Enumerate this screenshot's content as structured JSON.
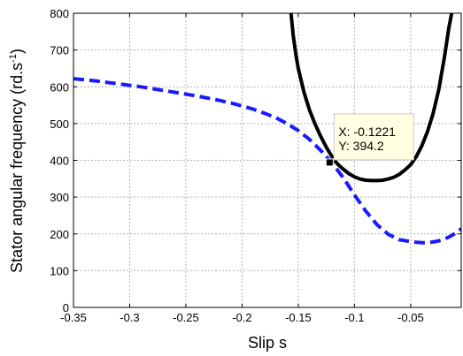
{
  "chart_data": {
    "type": "line",
    "title": "",
    "xlabel": "Slip s",
    "ylabel_main": "Stator angular frequency (rd.s",
    "ylabel_sup": "-1",
    "ylabel_close": ")",
    "xlim": [
      -0.35,
      -0.005
    ],
    "ylim": [
      0,
      800
    ],
    "x_ticks": [
      -0.35,
      -0.3,
      -0.25,
      -0.2,
      -0.15,
      -0.1,
      -0.05
    ],
    "x_tick_labels": [
      "-0.35",
      "-0.3",
      "-0.25",
      "-0.2",
      "-0.15",
      "-0.1",
      "-0.05"
    ],
    "y_ticks": [
      0,
      100,
      200,
      300,
      400,
      500,
      600,
      700,
      800
    ],
    "y_tick_labels": [
      "0",
      "100",
      "200",
      "300",
      "400",
      "500",
      "600",
      "700",
      "800"
    ],
    "grid": true,
    "legend": "none",
    "series": [
      {
        "style": "dashed",
        "color": "#1a1aff",
        "x": [
          -0.35,
          -0.34,
          -0.33,
          -0.32,
          -0.31,
          -0.3,
          -0.29,
          -0.28,
          -0.27,
          -0.26,
          -0.25,
          -0.24,
          -0.23,
          -0.22,
          -0.21,
          -0.2,
          -0.19,
          -0.18,
          -0.17,
          -0.16,
          -0.15,
          -0.14,
          -0.13,
          -0.12,
          -0.11,
          -0.1,
          -0.09,
          -0.08,
          -0.07,
          -0.06,
          -0.05,
          -0.045,
          -0.04,
          -0.035,
          -0.03,
          -0.025,
          -0.02,
          -0.015,
          -0.01,
          -0.005
        ],
        "y": [
          622,
          619,
          616,
          612,
          608,
          604,
          600,
          595,
          590,
          585,
          580,
          575,
          569,
          563,
          556,
          548,
          539,
          528,
          516,
          500,
          481,
          457,
          427,
          393,
          353,
          306,
          262,
          225,
          199,
          184,
          179,
          177,
          176,
          176,
          178,
          181,
          186,
          193,
          202,
          214
        ]
      },
      {
        "style": "solid",
        "color": "#000000",
        "x": [
          -0.1565,
          -0.1545,
          -0.152,
          -0.15,
          -0.145,
          -0.14,
          -0.135,
          -0.13,
          -0.125,
          -0.12,
          -0.115,
          -0.11,
          -0.105,
          -0.1,
          -0.095,
          -0.09,
          -0.085,
          -0.08,
          -0.075,
          -0.07,
          -0.065,
          -0.06,
          -0.055,
          -0.05,
          -0.045,
          -0.04,
          -0.035,
          -0.03,
          -0.025,
          -0.02,
          -0.016,
          -0.0135
        ],
        "y": [
          800,
          740,
          685,
          650,
          586,
          537,
          498,
          465,
          435,
          410,
          390,
          376,
          364,
          355,
          349,
          346,
          345,
          345,
          346,
          349,
          354,
          362,
          374,
          388,
          410,
          440,
          478,
          528,
          592,
          680,
          760,
          800
        ]
      }
    ],
    "annotation": {
      "x": -0.1221,
      "y": 394.2,
      "line1": "X: -0.1221",
      "line2": "Y: 394.2"
    }
  }
}
